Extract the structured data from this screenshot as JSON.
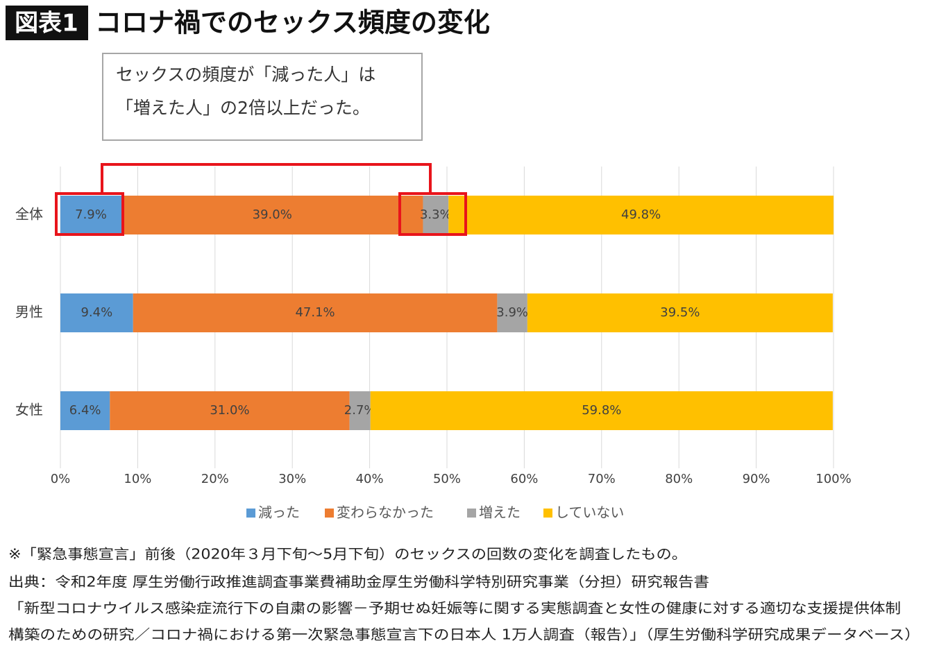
{
  "chart_data": {
    "type": "stacked-barh",
    "badge": "図表1",
    "title": "コロナ禍でのセックス頻度の変化",
    "annotation": [
      "セックスの頻度が「減った人」は",
      "「増えた人」の2倍以上だった。"
    ],
    "categories": [
      "全体",
      "男性",
      "女性"
    ],
    "series": [
      {
        "name": "減った",
        "color": "#5b9bd5",
        "values": [
          7.9,
          9.4,
          6.4
        ],
        "value_labels": [
          "7.9%",
          "9.4%",
          "6.4%"
        ]
      },
      {
        "name": "変わらなかった",
        "color": "#ed7d31",
        "values": [
          39.0,
          47.1,
          31.0
        ],
        "value_labels": [
          "39.0%",
          "47.1%",
          "31.0%"
        ]
      },
      {
        "name": "増えた",
        "color": "#a5a5a5",
        "values": [
          3.3,
          3.9,
          2.7
        ],
        "value_labels": [
          "3.3%",
          "3.9%",
          "2.7%"
        ]
      },
      {
        "name": "していない",
        "color": "#ffc000",
        "values": [
          49.8,
          39.5,
          59.8
        ],
        "value_labels": [
          "49.8%",
          "39.5%",
          "59.8%"
        ]
      }
    ],
    "xlim": [
      0,
      100
    ],
    "xticks": [
      {
        "value": 0,
        "label": "0%"
      },
      {
        "value": 10,
        "label": "10%"
      },
      {
        "value": 20,
        "label": "20%"
      },
      {
        "value": 30,
        "label": "30%"
      },
      {
        "value": 40,
        "label": "40%"
      },
      {
        "value": 50,
        "label": "50%"
      },
      {
        "value": 60,
        "label": "60%"
      },
      {
        "value": 70,
        "label": "70%"
      },
      {
        "value": 80,
        "label": "80%"
      },
      {
        "value": 90,
        "label": "90%"
      },
      {
        "value": 100,
        "label": "100%"
      }
    ],
    "grid": true,
    "legend": "bottom",
    "notes": [
      "※「緊急事態宣言」前後（2020年３月下旬～5月下旬）のセックスの回数の変化を調査したもの。",
      "出典：令和2年度 厚生労働行政推進調査事業費補助金厚生労働科学特別研究事業（分担）研究報告書",
      "「新型コロナウイルス感染症流行下の自粛の影響－予期せぬ妊娠等に関する実態調査と女性の健康に対する適切な支援提供体制",
      "構築のための研究／コロナ禍における第一次緊急事態宣言下の日本人 1万人調査（報告）」（厚生労働科学研究成果データベース）"
    ]
  }
}
